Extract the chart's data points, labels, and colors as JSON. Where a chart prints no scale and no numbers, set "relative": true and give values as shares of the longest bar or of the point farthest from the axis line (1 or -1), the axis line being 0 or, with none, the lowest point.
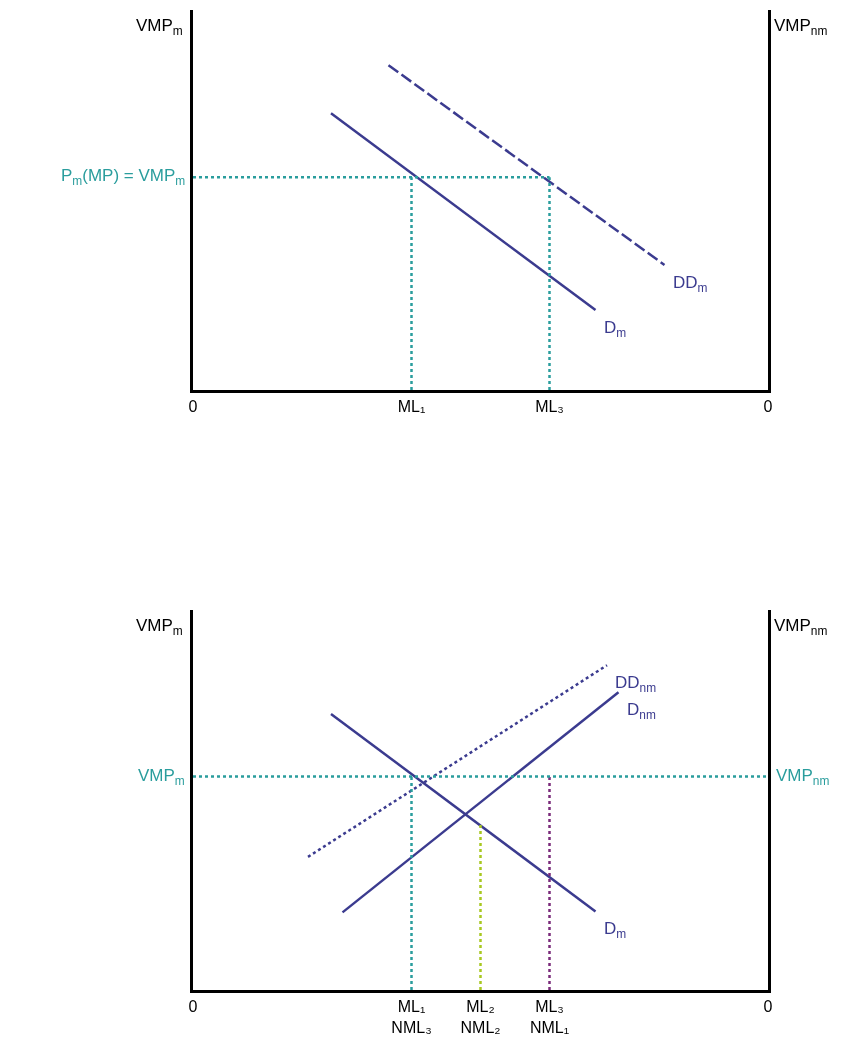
{
  "chart_data": [
    {
      "type": "line",
      "relative": true,
      "ylabel": "VMP$_{m}$",
      "y2label": "VMP$_{nm}$",
      "categories": [
        "0",
        null,
        null,
        null,
        null,
        null,
        null,
        null,
        null,
        null,
        null,
        null,
        null,
        null,
        null,
        null,
        null,
        null,
        null,
        "ML₁",
        null,
        null,
        null,
        null,
        null,
        null,
        null,
        null,
        null,
        null,
        null,
        "ML₃",
        null,
        null,
        null,
        null,
        null,
        null,
        null,
        null,
        null,
        null,
        null,
        null,
        null,
        null,
        null,
        null,
        null,
        null,
        "0"
      ],
      "series": [
        {
          "name": "D$_{m}$",
          "color": "#3b3b8f",
          "line_style": "solid",
          "values": [
            null,
            null,
            null,
            null,
            null,
            null,
            null,
            null,
            null,
            null,
            null,
            null,
            0.852,
            null,
            null,
            null,
            null,
            null,
            null,
            null,
            null,
            null,
            null,
            null,
            null,
            null,
            null,
            null,
            null,
            null,
            null,
            null,
            null,
            null,
            null,
            0.246,
            null,
            null,
            null,
            null,
            null,
            null,
            null,
            null,
            null,
            null,
            null,
            null,
            null,
            null,
            null
          ]
        },
        {
          "name": "DD$_{m}$",
          "color": "#3b3b8f",
          "line_style": "dashed",
          "values": [
            null,
            null,
            null,
            null,
            null,
            null,
            null,
            null,
            null,
            null,
            null,
            null,
            null,
            null,
            null,
            null,
            null,
            1.0,
            null,
            null,
            null,
            null,
            null,
            null,
            null,
            null,
            null,
            null,
            null,
            null,
            null,
            null,
            null,
            null,
            null,
            null,
            null,
            null,
            null,
            null,
            null,
            0.385,
            null,
            null,
            null,
            null,
            null,
            null,
            null,
            null,
            null
          ]
        },
        {
          "color": "#2a9d9d",
          "line_style": "dotted",
          "x": [
            "0",
            "ML₃"
          ],
          "values": [
            0.655,
            0.655
          ]
        },
        {
          "color": "#2a9d9d",
          "line_style": "dotted",
          "x": [
            "ML₁",
            "ML₁"
          ],
          "values": [
            0,
            0.655
          ]
        },
        {
          "color": "#2a9d9d",
          "line_style": "dotted",
          "x": [
            "ML₃",
            "ML₃"
          ],
          "values": [
            0,
            0.655
          ]
        }
      ],
      "annotations": [
        {
          "text": "P$_{m}$(MP) = VMP$_{m}$",
          "x": "0",
          "y": 0.655
        }
      ]
    },
    {
      "type": "line",
      "relative": true,
      "ylabel": "VMP$_{m}$",
      "y2label": "VMP$_{nm}$",
      "categories": [
        "0",
        null,
        null,
        null,
        null,
        null,
        null,
        null,
        null,
        null,
        null,
        null,
        null,
        null,
        null,
        null,
        null,
        null,
        null,
        "ML₁\nNML₃",
        null,
        null,
        null,
        null,
        null,
        "ML₂\nNML₂",
        null,
        null,
        null,
        null,
        null,
        "ML₃\nNML₁",
        null,
        null,
        null,
        null,
        null,
        null,
        null,
        null,
        null,
        null,
        null,
        null,
        null,
        null,
        null,
        null,
        null,
        null,
        "0"
      ],
      "series": [
        {
          "name": "D$_{m}$",
          "color": "#3b3b8f",
          "line_style": "solid",
          "values": [
            null,
            null,
            null,
            null,
            null,
            null,
            null,
            null,
            null,
            null,
            null,
            null,
            0.85,
            null,
            null,
            null,
            null,
            null,
            null,
            null,
            null,
            null,
            null,
            null,
            null,
            null,
            null,
            null,
            null,
            null,
            null,
            null,
            null,
            null,
            null,
            0.242,
            null,
            null,
            null,
            null,
            null,
            null,
            null,
            null,
            null,
            null,
            null,
            null,
            null,
            null,
            null
          ]
        },
        {
          "name": "D$_{nm}$",
          "color": "#3b3b8f",
          "line_style": "solid",
          "values": [
            null,
            null,
            null,
            null,
            null,
            null,
            null,
            null,
            null,
            null,
            null,
            null,
            null,
            0.239,
            null,
            null,
            null,
            null,
            null,
            null,
            null,
            null,
            null,
            null,
            null,
            null,
            null,
            null,
            null,
            null,
            null,
            null,
            null,
            null,
            null,
            null,
            null,
            0.917,
            null,
            null,
            null,
            null,
            null,
            null,
            null,
            null,
            null,
            null,
            null,
            null,
            null
          ]
        },
        {
          "name": "DD$_{nm}$",
          "color": "#3b3b8f",
          "line_style": "dotted",
          "values": [
            null,
            null,
            null,
            null,
            null,
            null,
            null,
            null,
            null,
            null,
            0.41,
            null,
            null,
            null,
            null,
            null,
            null,
            null,
            null,
            null,
            null,
            null,
            null,
            null,
            null,
            null,
            null,
            null,
            null,
            null,
            null,
            null,
            null,
            null,
            null,
            null,
            1.0,
            null,
            null,
            null,
            null,
            null,
            null,
            null,
            null,
            null,
            null,
            null,
            null,
            null,
            null
          ]
        },
        {
          "color": "#2a9d9d",
          "line_style": "dotted",
          "x": [
            "ML₁\nNML₃",
            "ML₁\nNML₃"
          ],
          "values": [
            0,
            0.657
          ]
        },
        {
          "color": "#a8c820",
          "line_style": "dotted",
          "x": [
            "ML₂\nNML₂",
            "ML₂\nNML₂"
          ],
          "values": [
            0,
            0.514
          ]
        },
        {
          "color": "#7a2a7a",
          "line_style": "dotted",
          "x": [
            "ML₃\nNML₁",
            "ML₃\nNML₁"
          ],
          "values": [
            0,
            0.657
          ]
        }
      ],
      "ref_lines": [
        {
          "axis": "y",
          "value": 0.657,
          "label": "VMP$_{m}$",
          "color": "#2a9d9d",
          "line_style": "dotted"
        }
      ],
      "annotations": [
        "VMP$_{nm}$"
      ]
    }
  ]
}
